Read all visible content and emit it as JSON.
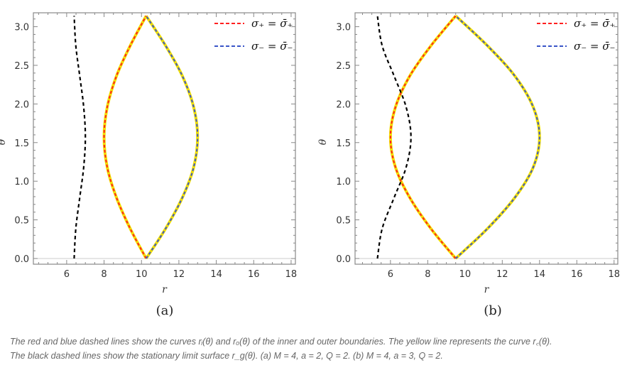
{
  "chart_data": [
    {
      "type": "line",
      "panel_label": "(a)",
      "xlabel": "r",
      "ylabel": "θ",
      "xlim": [
        4.22,
        18.23
      ],
      "ylim": [
        -0.074,
        3.18
      ],
      "xticks": [
        "6",
        "8",
        "10",
        "12",
        "14",
        "16",
        "18"
      ],
      "yticks": [
        "0.0",
        "0.5",
        "1.0",
        "1.5",
        "2.0",
        "2.5",
        "3.0"
      ],
      "legend": [
        "σ₊ = σ̄₊",
        "σ₋ = σ̄₋"
      ],
      "legend_position": "top-right",
      "theta": [
        0,
        0.39,
        0.79,
        1.18,
        1.57,
        1.96,
        2.36,
        2.75,
        3.14
      ],
      "series": [
        {
          "name": "σ₊ = σ̄₊",
          "color": "#ff2020",
          "style": "dashed",
          "r": [
            10.25,
            9.39,
            8.66,
            8.17,
            8.0,
            8.17,
            8.66,
            9.39,
            10.25
          ]
        },
        {
          "name": "σ₋ = σ̄₋",
          "color": "#3a55c8",
          "style": "dashed",
          "r": [
            10.25,
            11.3,
            12.19,
            12.79,
            13.0,
            12.79,
            12.19,
            11.3,
            10.25
          ]
        },
        {
          "color": "#f2e000",
          "style": "solid"
        },
        {
          "color": "#000000",
          "style": "dashed",
          "r": [
            6.4,
            6.49,
            6.7,
            6.91,
            7.0,
            6.91,
            6.7,
            6.49,
            6.4
          ]
        }
      ]
    },
    {
      "type": "line",
      "panel_label": "(b)",
      "xlabel": "r",
      "ylabel": "θ",
      "xlim": [
        4.1,
        18.2
      ],
      "ylim": [
        -0.074,
        3.18
      ],
      "xticks": [
        "6",
        "8",
        "10",
        "12",
        "14",
        "16",
        "18"
      ],
      "yticks": [
        "0.0",
        "0.5",
        "1.0",
        "1.5",
        "2.0",
        "2.5",
        "3.0"
      ],
      "legend": [
        "σ₊ = σ̄₊",
        "σ₋ = σ̄₋"
      ],
      "legend_position": "top-right",
      "theta": [
        0,
        0.39,
        0.79,
        1.18,
        1.57,
        1.96,
        2.36,
        2.75,
        3.14
      ],
      "series": [
        {
          "name": "σ₊ = σ̄₊",
          "color": "#ff2020",
          "style": "dashed",
          "r": [
            9.5,
            8.16,
            7.03,
            6.27,
            6.0,
            6.27,
            7.03,
            8.16,
            9.5
          ]
        },
        {
          "name": "σ₋ = σ̄₋",
          "color": "#3a55c8",
          "style": "dashed",
          "r": [
            9.5,
            11.22,
            12.68,
            13.66,
            14.0,
            13.66,
            12.68,
            11.22,
            9.5
          ]
        },
        {
          "color": "#f2e000",
          "style": "solid"
        },
        {
          "color": "#000000",
          "style": "dashed",
          "r": [
            5.3,
            5.56,
            6.2,
            6.84,
            7.1,
            6.84,
            6.2,
            5.56,
            5.3
          ]
        }
      ]
    }
  ],
  "caption": {
    "line1": "The red and blue dashed lines show the curves rᵢ(θ) and rₒ(θ) of the inner and outer boundaries. The yellow line represents the curve r꜀(θ).",
    "line2": "The black dashed lines show the stationary limit surface r_g(θ). (a) M = 4, a = 2, Q = 2. (b) M = 4, a = 3, Q = 2."
  }
}
